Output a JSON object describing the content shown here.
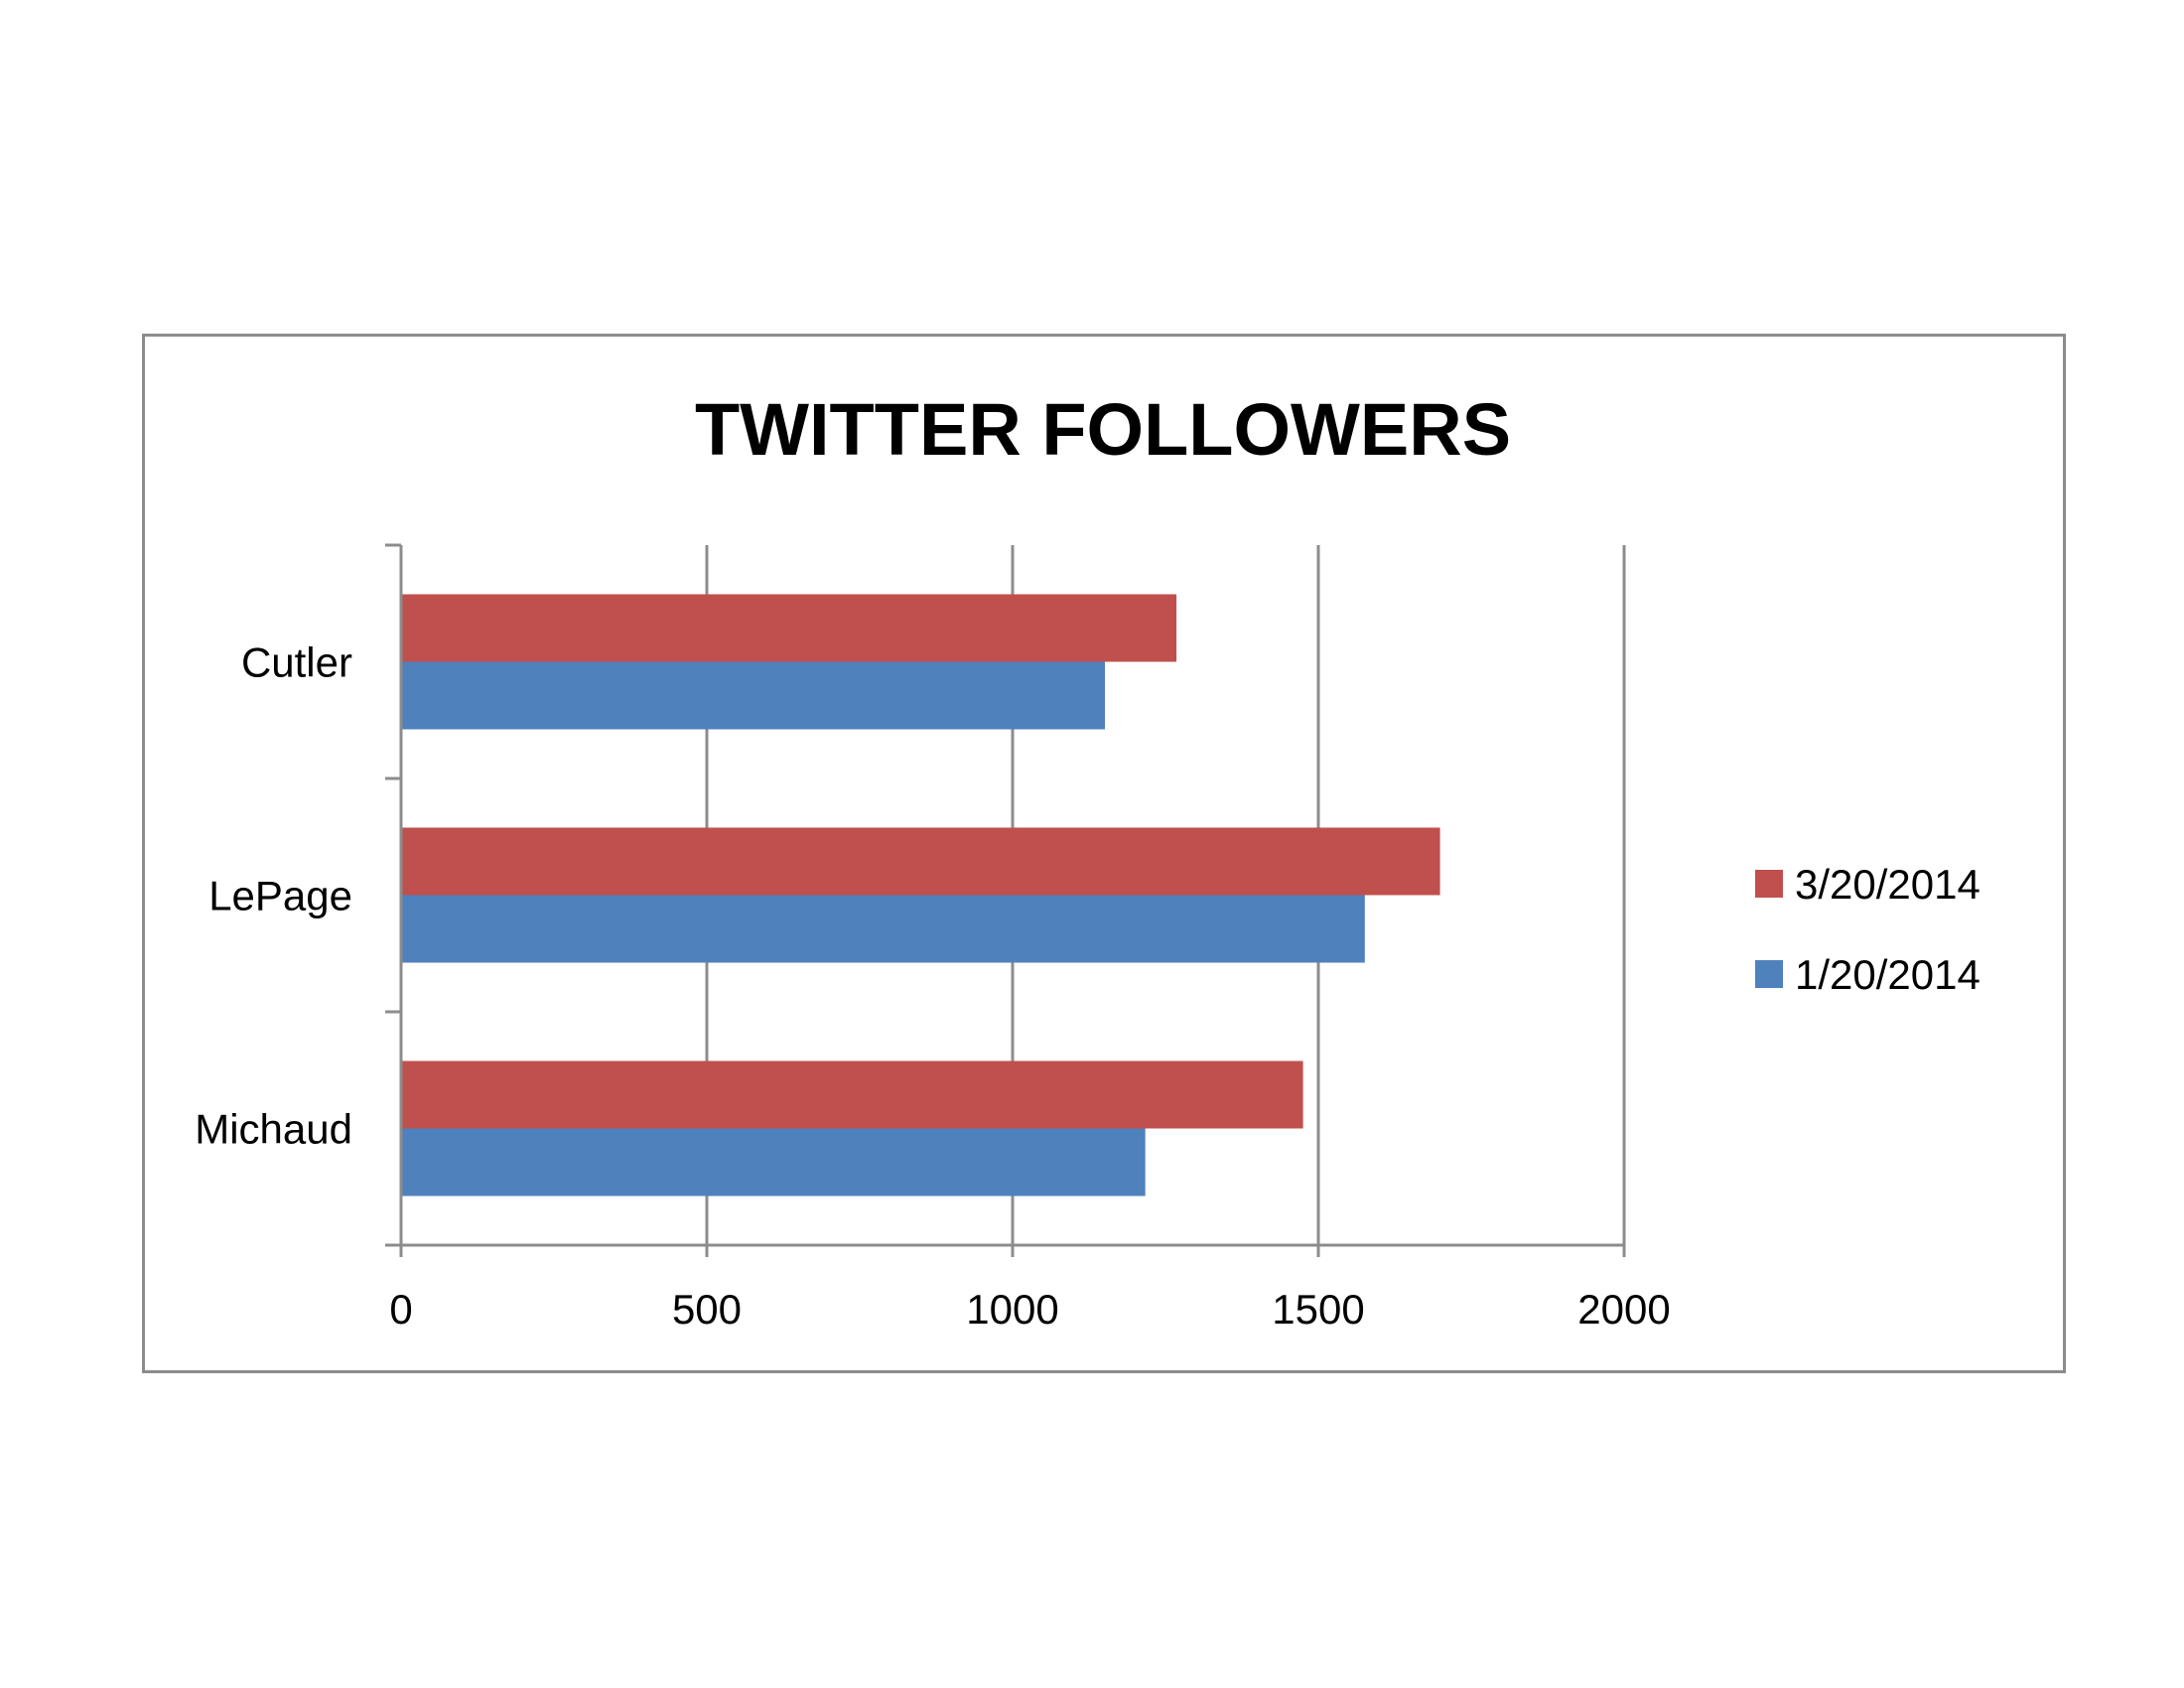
{
  "chart_data": {
    "type": "bar",
    "orientation": "horizontal",
    "title": "TWITTER FOLLOWERS",
    "categories": [
      "Cutler",
      "LePage",
      "Michaud"
    ],
    "series": [
      {
        "name": "3/20/2014",
        "color": "#c0504d",
        "values": [
          1268,
          1699,
          1475
        ]
      },
      {
        "name": "1/20/2014",
        "color": "#4f81bd",
        "values": [
          1151,
          1576,
          1217
        ]
      }
    ],
    "xlim": [
      0,
      2000
    ],
    "xticks": [
      "0",
      "500",
      "1000",
      "1500",
      "2000"
    ],
    "grid": true,
    "legend": "right"
  }
}
